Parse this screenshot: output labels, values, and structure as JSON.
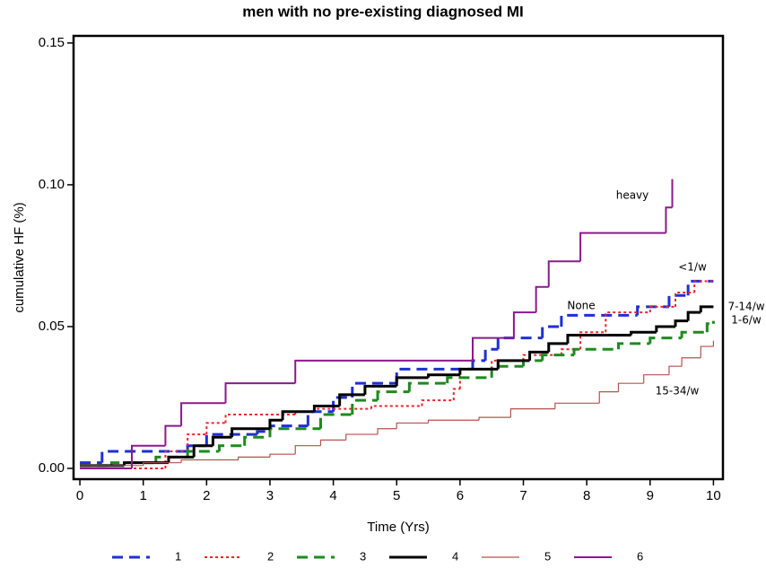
{
  "chart_data": {
    "type": "step",
    "title": "men with no pre-existing diagnosed MI",
    "x_label": "Time (Yrs)",
    "y_label": "cumulative HF (%)",
    "xlim": [
      -0.1,
      10.15
    ],
    "ylim": [
      -0.0038,
      0.1525
    ],
    "xticks": [
      0,
      1,
      2,
      3,
      4,
      5,
      6,
      7,
      8,
      9,
      10
    ],
    "yticks": [
      {
        "value": 0,
        "label": "0.00"
      },
      {
        "value": 0.05,
        "label": "0.05"
      },
      {
        "value": 0.1,
        "label": "0.10"
      },
      {
        "value": 0.15,
        "label": "0.15"
      }
    ],
    "grid": false,
    "legend": "bottom",
    "annotations": [
      "heavy",
      "<1/w",
      "None",
      "7-14/w",
      "1-6/w",
      "15-34/w"
    ],
    "series": [
      {
        "name": "1",
        "color": "#1f2fd6",
        "style": "dashed",
        "width": 3,
        "x": [
          0,
          0.35,
          1.7,
          2.0,
          2.8,
          3.0,
          3.6,
          4.0,
          4.3,
          5.0,
          6.2,
          6.4,
          6.6,
          7.3,
          7.6,
          8.8,
          9.3,
          9.6,
          10
        ],
        "values": [
          0.002,
          0.006,
          0.008,
          0.012,
          0.013,
          0.015,
          0.02,
          0.025,
          0.03,
          0.035,
          0.038,
          0.042,
          0.046,
          0.05,
          0.054,
          0.057,
          0.061,
          0.066,
          0.066
        ]
      },
      {
        "name": "2",
        "color": "#e8262a",
        "style": "dotted",
        "width": 2,
        "x": [
          0,
          1.35,
          1.7,
          2.0,
          2.3,
          3.4,
          3.7,
          4.6,
          5.4,
          5.9,
          6.0,
          6.5,
          7.0,
          7.6,
          7.9,
          8.3,
          9.0,
          9.4,
          9.7,
          10
        ],
        "values": [
          0,
          0.006,
          0.012,
          0.016,
          0.019,
          0.02,
          0.021,
          0.022,
          0.024,
          0.028,
          0.035,
          0.038,
          0.04,
          0.042,
          0.048,
          0.055,
          0.057,
          0.062,
          0.066,
          0.066
        ]
      },
      {
        "name": "3",
        "color": "#1e8a1e",
        "style": "dashed",
        "width": 3,
        "x": [
          0,
          0.5,
          1.2,
          1.7,
          2.2,
          2.6,
          3.0,
          3.8,
          4.3,
          4.7,
          5.2,
          5.8,
          6.5,
          7.0,
          7.3,
          7.8,
          8.5,
          9.0,
          9.5,
          9.9,
          10
        ],
        "values": [
          0.001,
          0.002,
          0.004,
          0.006,
          0.008,
          0.011,
          0.014,
          0.019,
          0.024,
          0.027,
          0.03,
          0.032,
          0.036,
          0.038,
          0.04,
          0.042,
          0.044,
          0.046,
          0.048,
          0.051,
          0.052
        ]
      },
      {
        "name": "4",
        "color": "#000000",
        "style": "solid",
        "width": 3,
        "x": [
          0,
          0.7,
          1.4,
          1.8,
          2.1,
          2.4,
          3.0,
          3.2,
          3.7,
          4.1,
          4.5,
          5.0,
          5.5,
          6.0,
          6.6,
          7.1,
          7.4,
          7.7,
          8.7,
          9.1,
          9.4,
          9.6,
          9.8,
          10
        ],
        "values": [
          0.001,
          0.002,
          0.004,
          0.008,
          0.011,
          0.014,
          0.017,
          0.02,
          0.022,
          0.026,
          0.029,
          0.032,
          0.033,
          0.035,
          0.038,
          0.041,
          0.044,
          0.047,
          0.048,
          0.05,
          0.052,
          0.055,
          0.057,
          0.057
        ]
      },
      {
        "name": "5",
        "color": "#b5524f",
        "style": "solid",
        "width": 1.2,
        "x": [
          0,
          1.0,
          1.6,
          2.5,
          3.0,
          3.4,
          3.8,
          4.2,
          4.7,
          5.0,
          5.5,
          6.3,
          6.8,
          7.5,
          8.2,
          8.5,
          8.9,
          9.3,
          9.5,
          9.8,
          10
        ],
        "values": [
          0.001,
          0.002,
          0.003,
          0.004,
          0.005,
          0.008,
          0.01,
          0.012,
          0.014,
          0.016,
          0.017,
          0.018,
          0.021,
          0.023,
          0.027,
          0.03,
          0.033,
          0.036,
          0.039,
          0.043,
          0.045
        ]
      },
      {
        "name": "6",
        "color": "#8b1a8b",
        "style": "solid",
        "width": 2,
        "x": [
          0,
          0.82,
          1.35,
          1.6,
          2.3,
          3.4,
          6.2,
          6.85,
          7.2,
          7.4,
          7.9,
          9.25,
          9.35
        ],
        "values": [
          0,
          0.008,
          0.015,
          0.023,
          0.03,
          0.038,
          0.046,
          0.055,
          0.064,
          0.073,
          0.083,
          0.092,
          0.102
        ]
      }
    ]
  }
}
